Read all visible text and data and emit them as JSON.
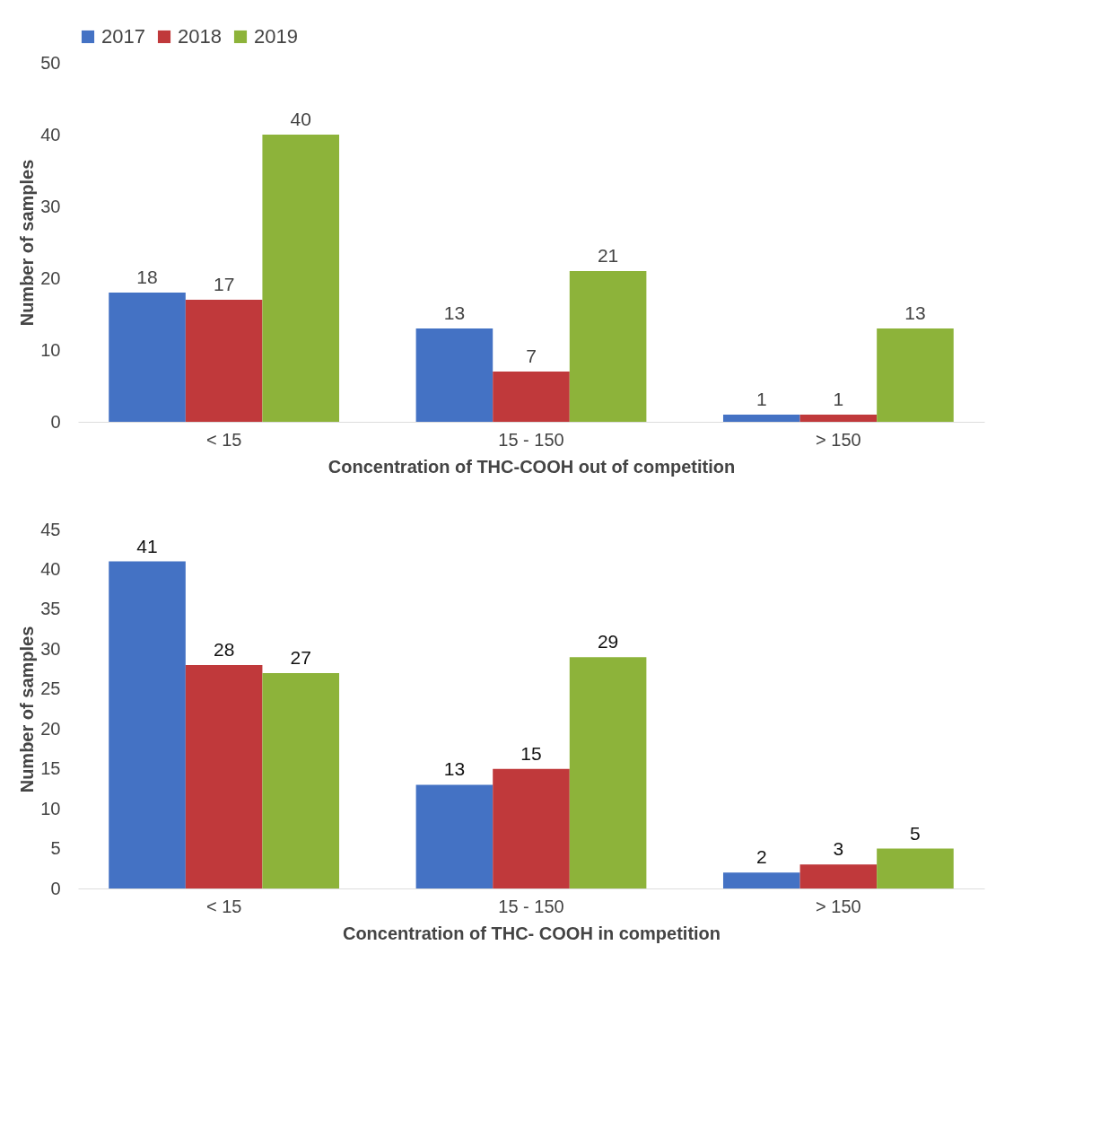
{
  "chart_data": [
    {
      "type": "bar",
      "categories": [
        "< 15",
        "15 - 150",
        "> 150"
      ],
      "xlabel": "Concentration of THC-COOH out of competition",
      "ylabel": "Number of samples",
      "ylim": [
        0,
        50
      ],
      "yticks": [
        0,
        10,
        20,
        30,
        40,
        50
      ],
      "grid": false,
      "legend": "top",
      "data_labels": true,
      "series": [
        {
          "name": "2017",
          "color": "#4472c4",
          "values": [
            18,
            13,
            1
          ]
        },
        {
          "name": "2018",
          "color": "#c0393b",
          "values": [
            17,
            7,
            1
          ]
        },
        {
          "name": "2019",
          "color": "#8db33a",
          "values": [
            40,
            21,
            13
          ]
        }
      ]
    },
    {
      "type": "bar",
      "categories": [
        "< 15",
        "15 - 150",
        "> 150"
      ],
      "xlabel": "Concentration of THC- COOH in competition",
      "ylabel": "Number of samples",
      "ylim": [
        0,
        45
      ],
      "yticks": [
        0,
        5,
        10,
        15,
        20,
        25,
        30,
        35,
        40,
        45
      ],
      "grid": false,
      "data_labels": true,
      "series": [
        {
          "color": "#4472c4",
          "values": [
            41,
            13,
            2
          ]
        },
        {
          "color": "#c0393b",
          "values": [
            28,
            15,
            3
          ]
        },
        {
          "color": "#8db33a",
          "values": [
            27,
            29,
            5
          ]
        }
      ]
    }
  ]
}
